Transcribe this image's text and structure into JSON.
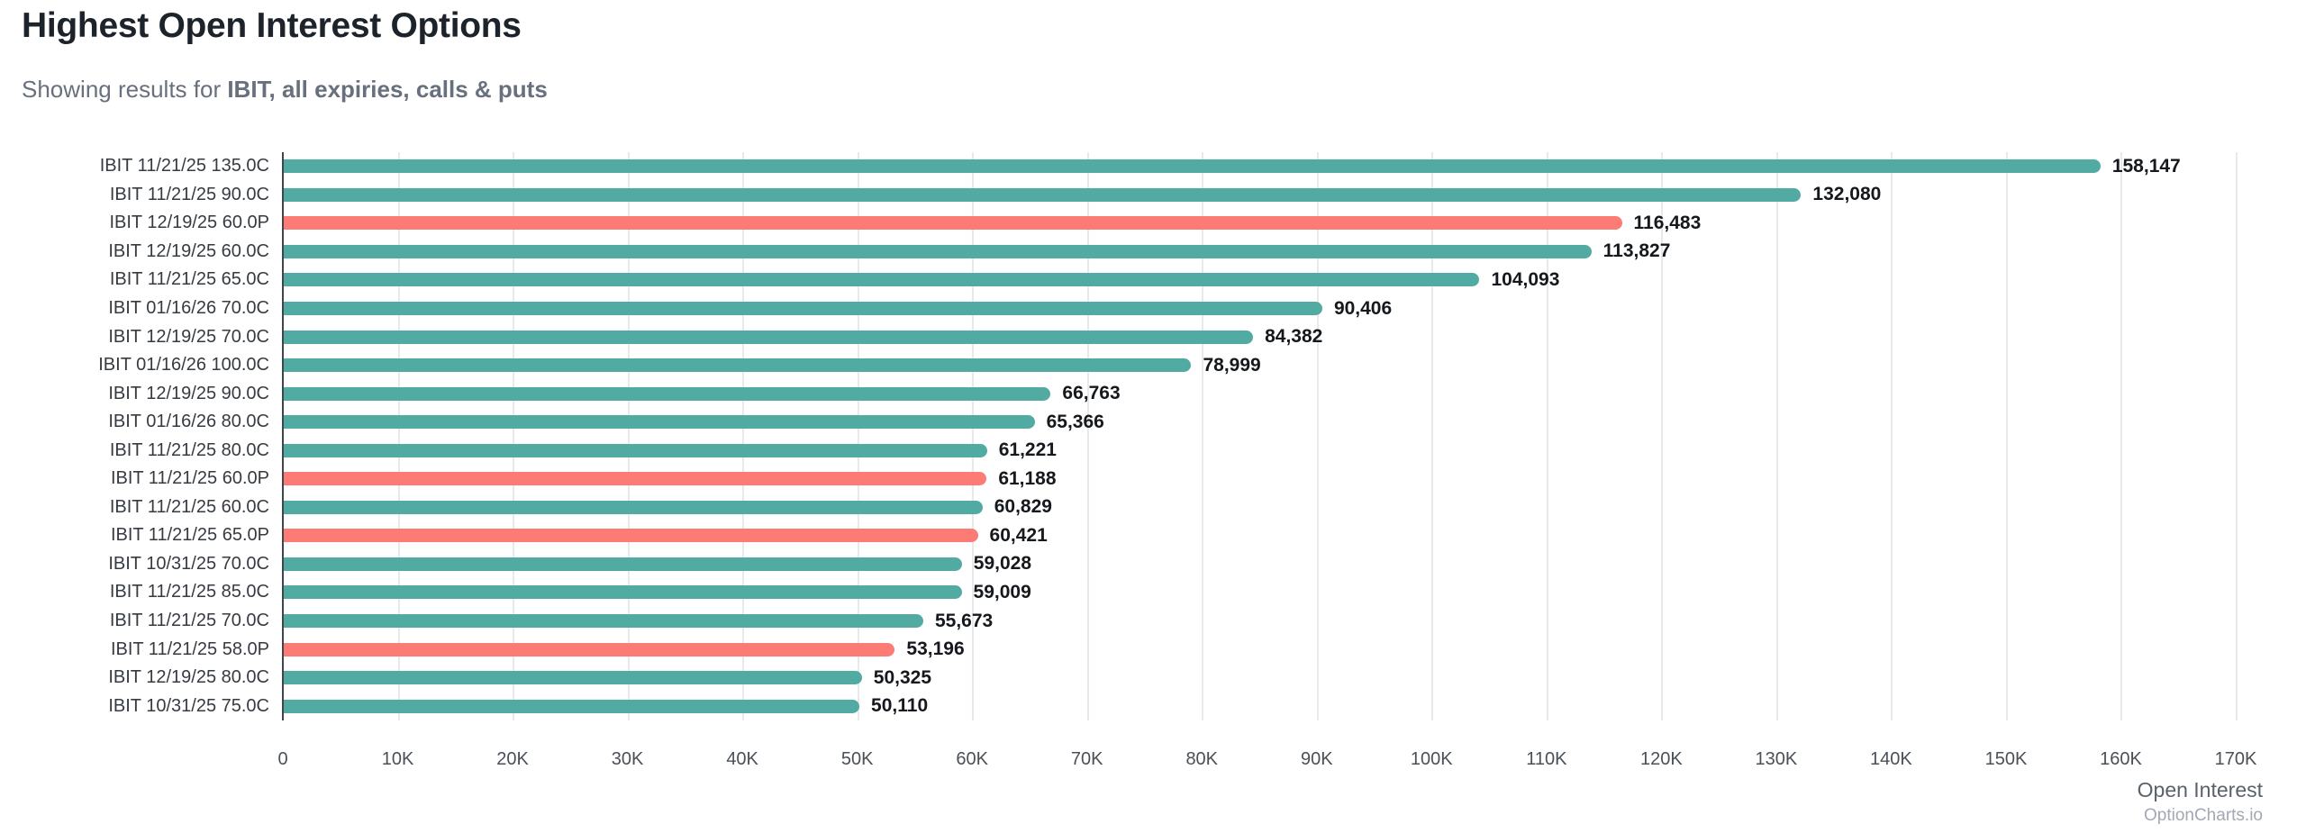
{
  "header": {
    "title": "Highest Open Interest Options",
    "subtitle_prefix": "Showing results for ",
    "subtitle_bold": "IBIT, all expiries, calls & puts"
  },
  "chart_data": {
    "type": "bar",
    "orientation": "horizontal",
    "title": "Highest Open Interest Options",
    "xlabel": "Open Interest",
    "ylabel": "",
    "xlim": [
      0,
      170000
    ],
    "grid": true,
    "legend": "none",
    "colors": {
      "call": "#52aba3",
      "put": "#fc7b75"
    },
    "x_ticks": [
      "0",
      "10K",
      "20K",
      "30K",
      "40K",
      "50K",
      "60K",
      "70K",
      "80K",
      "90K",
      "100K",
      "110K",
      "120K",
      "130K",
      "140K",
      "150K",
      "160K",
      "170K"
    ],
    "rows": [
      {
        "label": "IBIT 11/21/25 135.0C",
        "value": 158147,
        "display": "158,147",
        "type": "call"
      },
      {
        "label": "IBIT 11/21/25 90.0C",
        "value": 132080,
        "display": "132,080",
        "type": "call"
      },
      {
        "label": "IBIT 12/19/25 60.0P",
        "value": 116483,
        "display": "116,483",
        "type": "put"
      },
      {
        "label": "IBIT 12/19/25 60.0C",
        "value": 113827,
        "display": "113,827",
        "type": "call"
      },
      {
        "label": "IBIT 11/21/25 65.0C",
        "value": 104093,
        "display": "104,093",
        "type": "call"
      },
      {
        "label": "IBIT 01/16/26 70.0C",
        "value": 90406,
        "display": "90,406",
        "type": "call"
      },
      {
        "label": "IBIT 12/19/25 70.0C",
        "value": 84382,
        "display": "84,382",
        "type": "call"
      },
      {
        "label": "IBIT 01/16/26 100.0C",
        "value": 78999,
        "display": "78,999",
        "type": "call"
      },
      {
        "label": "IBIT 12/19/25 90.0C",
        "value": 66763,
        "display": "66,763",
        "type": "call"
      },
      {
        "label": "IBIT 01/16/26 80.0C",
        "value": 65366,
        "display": "65,366",
        "type": "call"
      },
      {
        "label": "IBIT 11/21/25 80.0C",
        "value": 61221,
        "display": "61,221",
        "type": "call"
      },
      {
        "label": "IBIT 11/21/25 60.0P",
        "value": 61188,
        "display": "61,188",
        "type": "put"
      },
      {
        "label": "IBIT 11/21/25 60.0C",
        "value": 60829,
        "display": "60,829",
        "type": "call"
      },
      {
        "label": "IBIT 11/21/25 65.0P",
        "value": 60421,
        "display": "60,421",
        "type": "put"
      },
      {
        "label": "IBIT 10/31/25 70.0C",
        "value": 59028,
        "display": "59,028",
        "type": "call"
      },
      {
        "label": "IBIT 11/21/25 85.0C",
        "value": 59009,
        "display": "59,009",
        "type": "call"
      },
      {
        "label": "IBIT 11/21/25 70.0C",
        "value": 55673,
        "display": "55,673",
        "type": "call"
      },
      {
        "label": "IBIT 11/21/25 58.0P",
        "value": 53196,
        "display": "53,196",
        "type": "put"
      },
      {
        "label": "IBIT 12/19/25 80.0C",
        "value": 50325,
        "display": "50,325",
        "type": "call"
      },
      {
        "label": "IBIT 10/31/25 75.0C",
        "value": 50110,
        "display": "50,110",
        "type": "call"
      }
    ]
  },
  "footer": {
    "axis_label": "Open Interest",
    "watermark": "OptionCharts.io"
  }
}
